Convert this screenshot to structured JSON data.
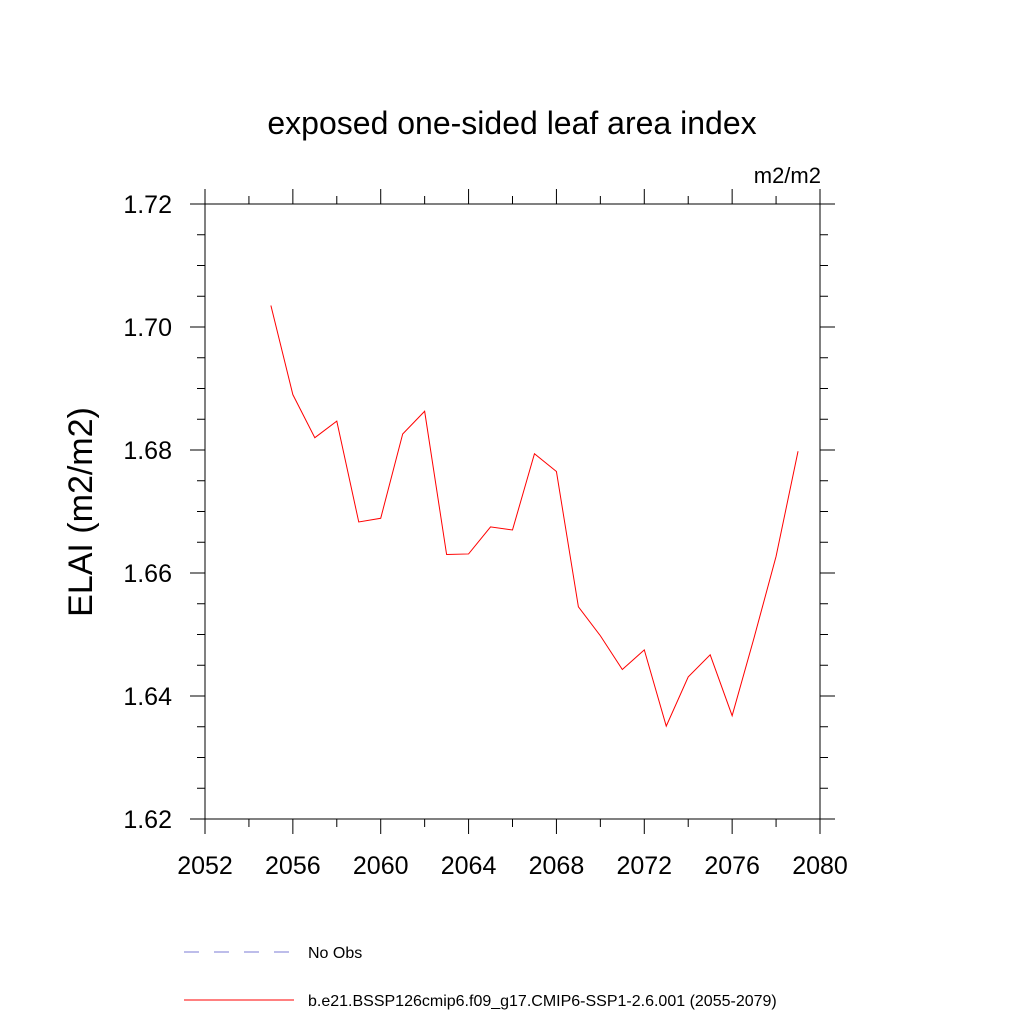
{
  "chart_data": {
    "type": "line",
    "title": "exposed one-sided leaf area index",
    "units_label": "m2/m2",
    "ylabel": "ELAI  (m2/m2)",
    "xlabel": "",
    "xlim": [
      2052,
      2080
    ],
    "ylim": [
      1.62,
      1.72
    ],
    "x_ticks": [
      2052,
      2056,
      2060,
      2064,
      2068,
      2072,
      2076,
      2080
    ],
    "y_ticks": [
      "1.62",
      "1.64",
      "1.66",
      "1.68",
      "1.70",
      "1.72"
    ],
    "grid": false,
    "legend_position": "bottom",
    "legend": [
      {
        "label": "No Obs",
        "color": "#7b7bd6",
        "style": "dashed"
      },
      {
        "label": "b.e21.BSSP126cmip6.f09_g17.CMIP6-SSP1-2.6.001 (2055-2079)",
        "color": "#ff0000",
        "style": "solid"
      }
    ],
    "series": [
      {
        "color": "#ff0000",
        "x": [
          2055,
          2056,
          2057,
          2058,
          2059,
          2060,
          2061,
          2062,
          2063,
          2064,
          2065,
          2066,
          2067,
          2068,
          2069,
          2070,
          2071,
          2072,
          2073,
          2074,
          2075,
          2076,
          2077,
          2078,
          2079
        ],
        "y": [
          1.7035,
          1.689,
          1.682,
          1.6847,
          1.6683,
          1.6689,
          1.6826,
          1.6863,
          1.663,
          1.6631,
          1.6675,
          1.667,
          1.6794,
          1.6765,
          1.6545,
          1.6498,
          1.6443,
          1.6475,
          1.6351,
          1.6431,
          1.6467,
          1.6368,
          1.6495,
          1.6627,
          1.6798
        ]
      }
    ]
  }
}
